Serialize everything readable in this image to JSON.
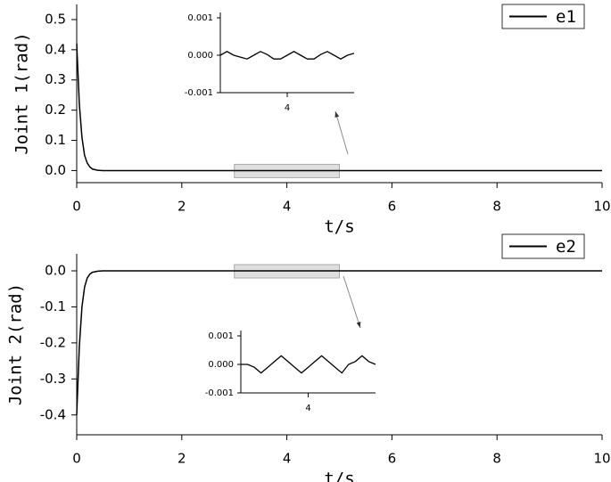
{
  "chart_data": [
    {
      "type": "line",
      "xlabel": "t/s",
      "ylabel": "Joint 1(rad)",
      "xlim": [
        0,
        10
      ],
      "xticks": [
        0,
        2,
        4,
        6,
        8,
        10
      ],
      "ylim": [
        -0.04,
        0.55
      ],
      "yticks": [
        {
          "value": 0,
          "label": "0.0"
        },
        0.1,
        0.2,
        0.3,
        0.4,
        0.5
      ],
      "legend": "upper right",
      "x": [
        0,
        0.05,
        0.1,
        0.15,
        0.2,
        0.25,
        0.3,
        0.4,
        0.5,
        1,
        2,
        3,
        4,
        5,
        6,
        7,
        8,
        9,
        10
      ],
      "series": [
        {
          "name": "e1",
          "color": "#000000",
          "values": [
            0.42,
            0.22,
            0.11,
            0.05,
            0.025,
            0.012,
            0.005,
            0.001,
            0,
            0,
            0,
            0,
            0,
            0,
            0,
            0,
            0,
            0,
            0
          ]
        }
      ],
      "zoom_region": [
        3,
        5
      ],
      "inset": {
        "xlim": [
          3,
          5
        ],
        "xticks": [
          4
        ],
        "ylim": [
          -0.001,
          0.001
        ],
        "yticks": [
          0.001,
          {
            "value": 0,
            "label": "0.000"
          },
          -0.001
        ],
        "x": [
          3,
          3.1,
          3.2,
          3.3,
          3.4,
          3.5,
          3.6,
          3.7,
          3.8,
          3.9,
          4,
          4.1,
          4.2,
          4.3,
          4.4,
          4.5,
          4.6,
          4.7,
          4.8,
          4.9,
          5
        ],
        "values": [
          0,
          0.0001,
          0,
          -5e-05,
          -0.0001,
          0,
          0.0001,
          2e-05,
          -0.0001,
          -0.0001,
          0,
          0.0001,
          0,
          -0.0001,
          -0.0001,
          2e-05,
          0.0001,
          0,
          -0.0001,
          0,
          5e-05
        ]
      }
    },
    {
      "type": "line",
      "xlabel": "t/s",
      "ylabel": "Joint 2(rad)",
      "xlim": [
        0,
        10
      ],
      "xticks": [
        0,
        2,
        4,
        6,
        8,
        10
      ],
      "ylim": [
        -0.455,
        0.047
      ],
      "yticks": [
        {
          "value": 0,
          "label": "0.0"
        },
        -0.1,
        -0.2,
        -0.3,
        -0.4
      ],
      "legend": "upper right",
      "x": [
        0,
        0.05,
        0.1,
        0.15,
        0.2,
        0.25,
        0.3,
        0.4,
        0.5,
        1,
        2,
        3,
        4,
        5,
        6,
        7,
        8,
        9,
        10
      ],
      "series": [
        {
          "name": "e2",
          "color": "#000000",
          "values": [
            -0.4,
            -0.21,
            -0.1,
            -0.045,
            -0.02,
            -0.009,
            -0.004,
            -0.001,
            0,
            0,
            0,
            0,
            0,
            0,
            0,
            0,
            0,
            0,
            0
          ]
        }
      ],
      "zoom_region": [
        3,
        5
      ],
      "inset": {
        "xlim": [
          3,
          5
        ],
        "xticks": [
          4
        ],
        "ylim": [
          -0.001,
          0.001
        ],
        "yticks": [
          0.001,
          {
            "value": 0,
            "label": "0.000"
          },
          -0.001
        ],
        "x": [
          3,
          3.1,
          3.2,
          3.3,
          3.4,
          3.5,
          3.6,
          3.7,
          3.8,
          3.9,
          4,
          4.1,
          4.2,
          4.3,
          4.4,
          4.5,
          4.6,
          4.7,
          4.8,
          4.9,
          5
        ],
        "values": [
          0,
          0,
          -0.0001,
          -0.0003,
          -0.0001,
          0.0001,
          0.0003,
          0.0001,
          -0.0001,
          -0.0003,
          -0.0001,
          0.0001,
          0.0003,
          0.0001,
          -0.0001,
          -0.0003,
          0,
          0.0001,
          0.0003,
          0.0001,
          0
        ]
      }
    }
  ]
}
